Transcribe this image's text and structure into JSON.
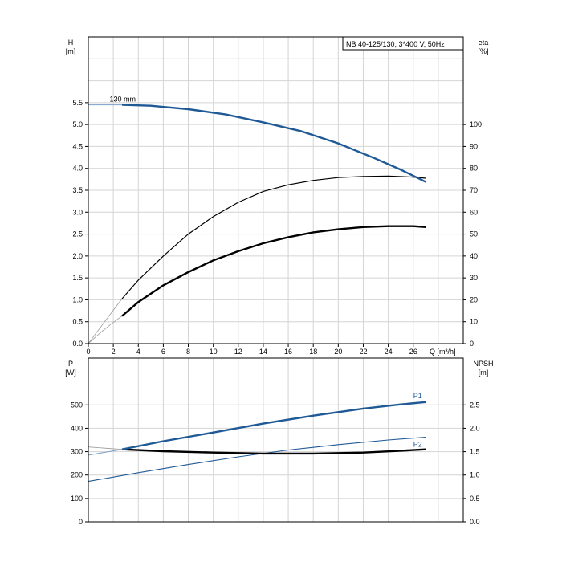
{
  "chart_data": [
    {
      "type": "line",
      "title": "NB 40-125/130, 3*400 V, 50Hz",
      "xlabel": "Q [m³/h]",
      "ylabel_left": [
        "H",
        "[m]"
      ],
      "ylabel_right": [
        "eta",
        "[%]"
      ],
      "xlim": [
        0,
        30
      ],
      "ylim_left": [
        0,
        7
      ],
      "ylim_right": [
        0,
        140
      ],
      "x_ticks": [
        0,
        2,
        4,
        6,
        8,
        10,
        12,
        14,
        16,
        18,
        20,
        22,
        24,
        26
      ],
      "y_left_ticks": [
        "0.0",
        "0.5",
        "1.0",
        "1.5",
        "2.0",
        "2.5",
        "3.0",
        "3.5",
        "4.0",
        "4.5",
        "5.0",
        "5.5"
      ],
      "y_right_ticks": [
        "0",
        "10",
        "20",
        "30",
        "40",
        "50",
        "60",
        "70",
        "80",
        "90",
        "100"
      ],
      "grid": true,
      "series": [
        {
          "name": "130 mm",
          "axis": "left",
          "color": "#1f5a96",
          "x": [
            2.7,
            5,
            8,
            11,
            14,
            17,
            20,
            23,
            25,
            27
          ],
          "y": [
            5.45,
            5.43,
            5.35,
            5.23,
            5.05,
            4.85,
            4.57,
            4.22,
            3.97,
            3.69
          ]
        },
        {
          "axis": "left",
          "color": "#000000",
          "x": [
            2.7,
            4,
            6,
            8,
            10,
            12,
            14,
            16,
            18,
            20,
            22,
            24,
            26,
            27
          ],
          "y": [
            0.63,
            0.95,
            1.33,
            1.63,
            1.9,
            2.11,
            2.29,
            2.43,
            2.54,
            2.61,
            2.66,
            2.68,
            2.68,
            2.66
          ]
        },
        {
          "axis": "right",
          "color": "#000000",
          "x": [
            2.7,
            4,
            6,
            8,
            10,
            12,
            14,
            16,
            18,
            20,
            22,
            24,
            26,
            27
          ],
          "y": [
            20.5,
            29,
            40,
            50,
            58,
            64.5,
            69.5,
            72.5,
            74.5,
            75.8,
            76.3,
            76.5,
            76,
            75.5
          ]
        }
      ]
    },
    {
      "type": "line",
      "xlim": [
        0,
        30
      ],
      "ylabel_left": [
        "P",
        "[W]"
      ],
      "ylabel_right": [
        "NPSH",
        "[m]"
      ],
      "ylim_left": [
        0,
        700
      ],
      "ylim_right": [
        0,
        3.5
      ],
      "y_left_ticks": [
        "0",
        "100",
        "200",
        "300",
        "400",
        "500"
      ],
      "y_right_ticks": [
        "0.0",
        "0.5",
        "1.0",
        "1.5",
        "2.0",
        "2.5"
      ],
      "grid": true,
      "series": [
        {
          "name": "P1",
          "axis": "left",
          "color": "#1f5a96",
          "x": [
            2.7,
            6,
            10,
            14,
            18,
            22,
            25,
            27
          ],
          "y": [
            310,
            345,
            382,
            420,
            454,
            484,
            502,
            512
          ]
        },
        {
          "name": "P2",
          "axis": "left",
          "color": "#1f5a96",
          "x": [
            0,
            4,
            8,
            12,
            16,
            20,
            24,
            27
          ],
          "y": [
            173,
            210,
            245,
            278,
            307,
            330,
            350,
            362
          ]
        },
        {
          "axis": "right",
          "color": "#000000",
          "x": [
            2.7,
            6,
            10,
            14,
            18,
            22,
            25,
            27
          ],
          "y": [
            1.55,
            1.51,
            1.48,
            1.46,
            1.46,
            1.48,
            1.52,
            1.55
          ]
        }
      ]
    }
  ]
}
